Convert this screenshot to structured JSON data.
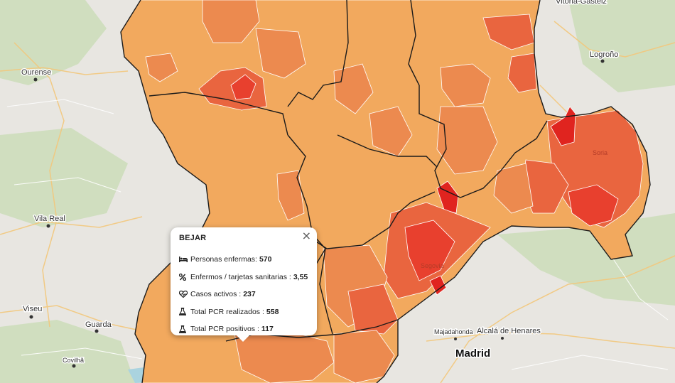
{
  "map": {
    "region_fill_colors": {
      "base": "#f2a95e",
      "medium": "#ec8a4f",
      "high": "#e9653f",
      "very_high": "#e8402e",
      "extreme": "#e0241f"
    },
    "background_color": "#e8e6e1",
    "labels": {
      "ourense": "Ourense",
      "vila_real": "Vila Real",
      "viseu": "Viseu",
      "guarda": "Guarda",
      "covilha": "Covilhã",
      "vitoria": "Vitoria-Gasteiz",
      "logrono": "Logroño",
      "soria": "Soria",
      "segovia": "Segovia",
      "majadahonda": "Majadahonda",
      "alcala": "Alcalá de Henares",
      "madrid": "Madrid"
    }
  },
  "popup": {
    "title": "BEJAR",
    "close_symbol": "×",
    "stats": [
      {
        "icon": "bed-icon",
        "label": "Personas enfermas:",
        "value": "570"
      },
      {
        "icon": "percent-icon",
        "label": "Enfermos / tarjetas sanitarias :",
        "value": "3,55"
      },
      {
        "icon": "heartbeat-icon",
        "label": "Casos activos :",
        "value": "237"
      },
      {
        "icon": "flask-icon",
        "label": "Total PCR realizados :",
        "value": "558"
      },
      {
        "icon": "flask-icon",
        "label": "Total PCR positivos :",
        "value": "117"
      }
    ]
  }
}
